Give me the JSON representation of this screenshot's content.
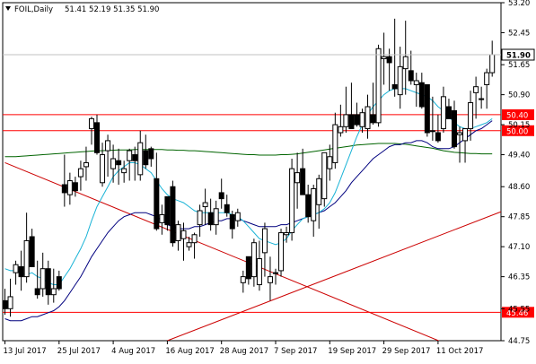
{
  "chart_data": {
    "type": "candlestick",
    "symbol_label": "FOIL,Daily",
    "header_ohlc": "51.41 52.19 51.35 51.90",
    "y_range": [
      44.75,
      53.2
    ],
    "y_ticks": [
      "53.20",
      "52.45",
      "51.65",
      "50.90",
      "50.15",
      "49.40",
      "48.60",
      "47.85",
      "47.10",
      "46.35",
      "45.55",
      "44.75"
    ],
    "x_ticks": [
      "13 Jul 2017",
      "25 Jul 2017",
      "4 Aug 2017",
      "16 Aug 2017",
      "28 Aug 2017",
      "7 Sep 2017",
      "19 Sep 2017",
      "29 Sep 2017",
      "11 Oct 2017"
    ],
    "current_price": "51.90",
    "levels": [
      {
        "label": "50.40",
        "value": 50.4,
        "color": "#ff0000"
      },
      {
        "label": "50.00",
        "value": 50.0,
        "color": "#ff0000"
      },
      {
        "label": "45.46",
        "value": 45.46,
        "color": "#ff0000"
      }
    ],
    "candles": {
      "open": [
        45.75,
        45.55,
        46.45,
        46.6,
        46.35,
        47.35,
        46.05,
        46.05,
        46.55,
        45.9,
        46.35,
        48.65,
        48.4,
        48.7,
        48.85,
        49.1,
        50.05,
        50.2,
        48.7,
        49.5,
        49.05,
        49.25,
        48.95,
        49.25,
        49.4,
        48.9,
        49.5,
        49.55,
        48.8,
        47.7,
        48.35,
        48.6,
        47.25,
        47.3,
        47.1,
        47.2,
        47.65,
        48.1,
        47.95,
        47.65,
        48.45,
        48.15,
        47.9,
        47.75,
        46.2,
        46.85,
        46.35,
        46.15,
        46.95,
        46.2,
        46.45,
        46.5,
        47.4,
        47.45,
        48.7,
        49.05,
        48.4,
        47.75,
        48.15,
        48.3,
        49.05,
        49.2,
        49.95,
        50.1,
        50.4,
        50.4,
        50.1,
        50.05,
        50.4,
        50.2,
        51.8,
        51.85,
        51.15,
        50.9,
        51.55,
        51.5,
        51.15,
        51.2,
        51.15,
        50.0,
        49.95,
        50.05,
        50.6,
        50.5,
        49.9,
        49.75,
        50.05,
        50.95,
        50.8,
        51.15,
        51.45
      ],
      "high": [
        46.05,
        46.3,
        46.75,
        47.0,
        47.95,
        47.55,
        46.75,
        46.95,
        46.75,
        46.55,
        46.5,
        49.4,
        48.95,
        48.85,
        49.25,
        49.6,
        50.35,
        50.4,
        49.7,
        49.9,
        49.65,
        49.55,
        49.25,
        49.55,
        49.6,
        50.0,
        49.9,
        49.6,
        49.45,
        48.15,
        48.35,
        48.75,
        47.75,
        47.7,
        47.35,
        47.45,
        48.15,
        48.55,
        48.3,
        48.25,
        48.8,
        48.4,
        48.0,
        48.05,
        46.5,
        46.85,
        47.3,
        47.25,
        47.7,
        46.85,
        46.55,
        47.55,
        47.6,
        49.3,
        49.45,
        49.55,
        48.65,
        48.65,
        48.9,
        49.45,
        49.65,
        50.45,
        50.65,
        51.1,
        51.2,
        50.7,
        50.55,
        50.9,
        51.2,
        52.15,
        52.45,
        52.05,
        52.8,
        52.1,
        52.75,
        52.0,
        51.45,
        51.45,
        51.15,
        50.85,
        50.4,
        51.1,
        50.8,
        50.75,
        50.1,
        50.05,
        51.0,
        51.35,
        51.1,
        51.55,
        52.25
      ],
      "low": [
        45.4,
        45.35,
        46.15,
        46.0,
        46.2,
        46.6,
        45.8,
        45.85,
        45.65,
        45.7,
        46.0,
        48.1,
        48.15,
        48.35,
        48.5,
        48.75,
        49.65,
        49.4,
        48.6,
        48.85,
        48.7,
        48.65,
        48.7,
        48.75,
        48.75,
        48.75,
        49.05,
        49.1,
        47.5,
        47.4,
        47.5,
        47.1,
        47.0,
        46.75,
        47.0,
        46.8,
        47.35,
        47.65,
        47.5,
        47.4,
        48.05,
        47.85,
        47.3,
        47.6,
        45.95,
        46.15,
        46.1,
        46.0,
        46.35,
        45.75,
        46.15,
        46.35,
        47.2,
        47.25,
        48.05,
        48.4,
        47.7,
        47.35,
        47.55,
        48.1,
        48.75,
        49.05,
        49.85,
        49.95,
        50.05,
        50.1,
        49.95,
        49.8,
        50.15,
        50.1,
        51.15,
        51.0,
        50.85,
        50.55,
        50.9,
        51.15,
        50.6,
        50.55,
        49.85,
        49.75,
        49.7,
        49.95,
        50.3,
        49.55,
        49.2,
        49.2,
        49.75,
        50.3,
        50.55,
        50.55,
        51.35
      ],
      "close": [
        45.55,
        45.85,
        46.65,
        46.35,
        47.25,
        46.6,
        45.9,
        46.55,
        45.9,
        46.05,
        46.05,
        48.45,
        48.75,
        48.5,
        49.05,
        49.2,
        50.3,
        49.45,
        49.4,
        49.75,
        49.3,
        49.15,
        49.05,
        49.5,
        49.25,
        49.7,
        49.15,
        49.3,
        47.55,
        47.9,
        47.65,
        47.2,
        47.65,
        47.5,
        47.2,
        47.4,
        48.0,
        48.2,
        47.65,
        48.05,
        48.3,
        47.95,
        47.55,
        47.95,
        46.35,
        46.3,
        47.2,
        46.8,
        47.55,
        46.35,
        46.45,
        47.45,
        47.45,
        49.05,
        48.95,
        48.4,
        47.85,
        48.55,
        48.8,
        49.45,
        49.35,
        50.15,
        50.1,
        50.4,
        50.05,
        50.15,
        50.45,
        50.6,
        50.2,
        52.05,
        51.85,
        51.7,
        51.05,
        51.6,
        51.85,
        51.25,
        51.25,
        50.6,
        49.95,
        50.0,
        49.75,
        50.85,
        50.3,
        49.6,
        49.95,
        50.05,
        50.7,
        51.1,
        50.8,
        51.45,
        51.9
      ]
    },
    "ma_fast": [
      46.55,
      46.5,
      46.5,
      46.45,
      46.4,
      46.45,
      46.35,
      46.3,
      46.2,
      46.15,
      46.15,
      46.35,
      46.55,
      46.8,
      47.05,
      47.35,
      47.75,
      48.1,
      48.35,
      48.6,
      48.85,
      49.0,
      49.1,
      49.2,
      49.2,
      49.15,
      49.05,
      48.95,
      48.75,
      48.55,
      48.4,
      48.3,
      48.25,
      48.2,
      48.1,
      48.0,
      47.95,
      47.95,
      47.95,
      47.95,
      47.95,
      47.95,
      47.9,
      47.85,
      47.75,
      47.6,
      47.45,
      47.3,
      47.25,
      47.2,
      47.15,
      47.2,
      47.3,
      47.5,
      47.65,
      47.8,
      47.85,
      47.9,
      47.95,
      48.05,
      48.2,
      48.45,
      48.8,
      49.15,
      49.5,
      49.85,
      50.15,
      50.4,
      50.6,
      50.75,
      50.9,
      51.0,
      51.05,
      51.05,
      51.05,
      51.0,
      50.95,
      50.9,
      50.85,
      50.75,
      50.6,
      50.5,
      50.35,
      50.2,
      50.1,
      50.05,
      50.05,
      50.1,
      50.15,
      50.2,
      50.3
    ],
    "ma_mid": [
      45.3,
      45.25,
      45.25,
      45.25,
      45.3,
      45.35,
      45.35,
      45.4,
      45.45,
      45.5,
      45.6,
      45.75,
      45.95,
      46.15,
      46.35,
      46.6,
      46.85,
      47.05,
      47.25,
      47.45,
      47.6,
      47.75,
      47.85,
      47.9,
      47.95,
      47.95,
      47.95,
      47.9,
      47.85,
      47.75,
      47.65,
      47.6,
      47.55,
      47.55,
      47.55,
      47.6,
      47.6,
      47.65,
      47.7,
      47.75,
      47.75,
      47.8,
      47.8,
      47.8,
      47.75,
      47.7,
      47.65,
      47.6,
      47.6,
      47.6,
      47.6,
      47.65,
      47.65,
      47.7,
      47.75,
      47.8,
      47.85,
      47.9,
      47.95,
      48.0,
      48.1,
      48.2,
      48.35,
      48.5,
      48.7,
      48.85,
      49.0,
      49.15,
      49.3,
      49.4,
      49.5,
      49.6,
      49.65,
      49.65,
      49.7,
      49.7,
      49.75,
      49.75,
      49.7,
      49.6,
      49.55,
      49.55,
      49.55,
      49.6,
      49.7,
      49.8,
      49.9,
      50.0,
      50.05,
      50.15,
      50.25
    ],
    "ma_slow": [
      49.35,
      49.35,
      49.35,
      49.36,
      49.37,
      49.38,
      49.39,
      49.4,
      49.41,
      49.42,
      49.43,
      49.44,
      49.45,
      49.46,
      49.47,
      49.48,
      49.49,
      49.5,
      49.5,
      49.51,
      49.51,
      49.52,
      49.52,
      49.52,
      49.53,
      49.53,
      49.53,
      49.53,
      49.53,
      49.53,
      49.52,
      49.52,
      49.51,
      49.51,
      49.5,
      49.5,
      49.49,
      49.48,
      49.47,
      49.46,
      49.45,
      49.44,
      49.43,
      49.42,
      49.41,
      49.4,
      49.4,
      49.39,
      49.39,
      49.39,
      49.39,
      49.4,
      49.4,
      49.41,
      49.42,
      49.44,
      49.46,
      49.48,
      49.5,
      49.52,
      49.54,
      49.56,
      49.58,
      49.6,
      49.62,
      49.64,
      49.65,
      49.66,
      49.67,
      49.68,
      49.68,
      49.68,
      49.68,
      49.67,
      49.66,
      49.64,
      49.62,
      49.6,
      49.58,
      49.56,
      49.53,
      49.5,
      49.48,
      49.46,
      49.45,
      49.44,
      49.43,
      49.43,
      49.42,
      49.42,
      49.42
    ],
    "trend_lines": [
      {
        "from": [
          0,
          49.2
        ],
        "to": [
          90,
          44.2
        ]
      },
      {
        "from": [
          30,
          44.75
        ],
        "to": [
          95,
          48.15
        ]
      }
    ],
    "colors": {
      "bull_fill": "#ffffff",
      "bear_fill": "#000000",
      "candle_edge": "#000000",
      "ma_fast": "#19b3d6",
      "ma_mid": "#00007f",
      "ma_slow": "#006400",
      "trend": "#cc0000",
      "grid": "#000000"
    }
  }
}
